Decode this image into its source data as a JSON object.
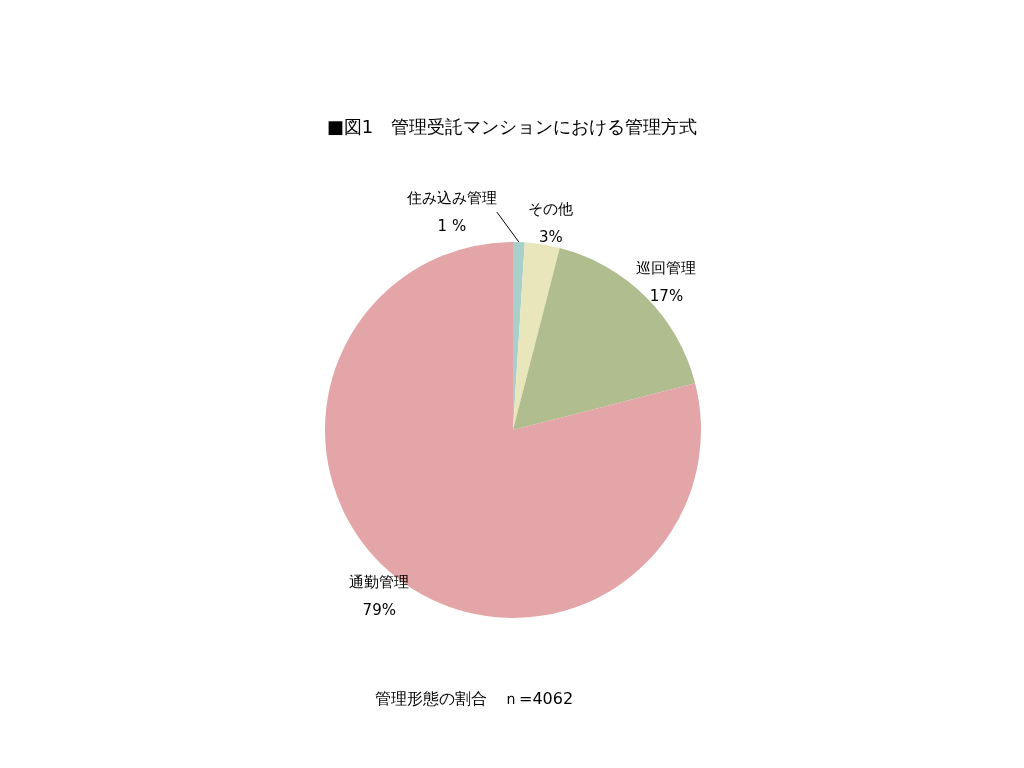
{
  "chart_data": {
    "type": "pie",
    "title": "■図1　管理受託マンションにおける管理方式",
    "categories": [
      "住み込み管理",
      "その他",
      "巡回管理",
      "通勤管理"
    ],
    "values": [
      1,
      3,
      17,
      79
    ],
    "colors": [
      "#a9cfcb",
      "#e9e6bb",
      "#afbd8f",
      "#e3a5a7"
    ],
    "value_labels": [
      "1 %",
      "3%",
      "17%",
      "79%"
    ],
    "annotations": [
      "管理形態の割合　ｎ=4062"
    ]
  }
}
